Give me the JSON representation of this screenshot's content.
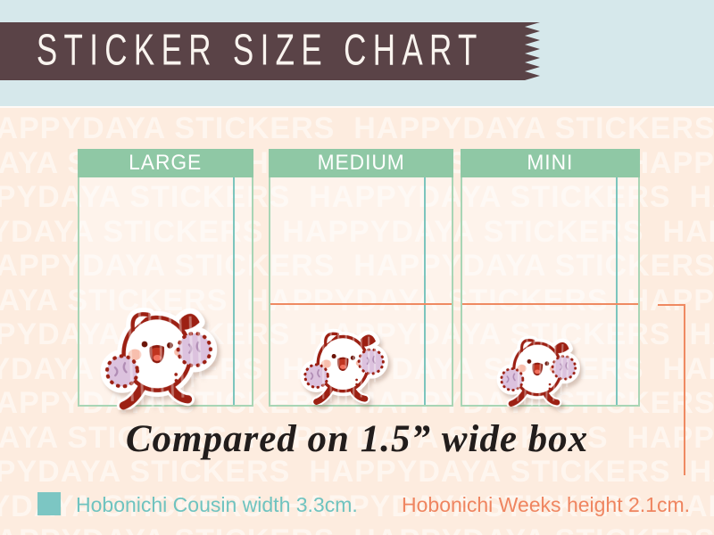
{
  "banner": {
    "title": "STICKER SIZE CHART"
  },
  "watermark": {
    "text": "HAPPYDAYA STICKERS",
    "rows": 13,
    "repeats_per_row": 6,
    "color": "rgba(255,255,255,0.5)"
  },
  "sizes": {
    "columns": [
      {
        "label": "LARGE"
      },
      {
        "label": "MEDIUM"
      },
      {
        "label": "MINI"
      }
    ],
    "caption": "Compared on 1.5” wide box"
  },
  "legend": {
    "cousin_label": "Hobonichi Cousin width 3.3cm.",
    "weeks_label": "Hobonichi Weeks height 2.1cm."
  },
  "icons": {
    "mascot": "cheerleader-panda-sticker",
    "legend_swatch": "teal-square"
  },
  "colors": {
    "top_strip": "#d6e8eb",
    "banner_bg": "#5a4347",
    "banner_text": "#f9f4ef",
    "background": "#fdecdf",
    "header_green": "#8fc8a5",
    "box_border": "#a8d5b5",
    "cousin_teal": "#7cc5bd",
    "weeks_orange": "#ef8a62",
    "caption_text": "#221d1c",
    "mascot_outline_red": "#9c2013",
    "pom_lavender": "#dcc2de"
  }
}
